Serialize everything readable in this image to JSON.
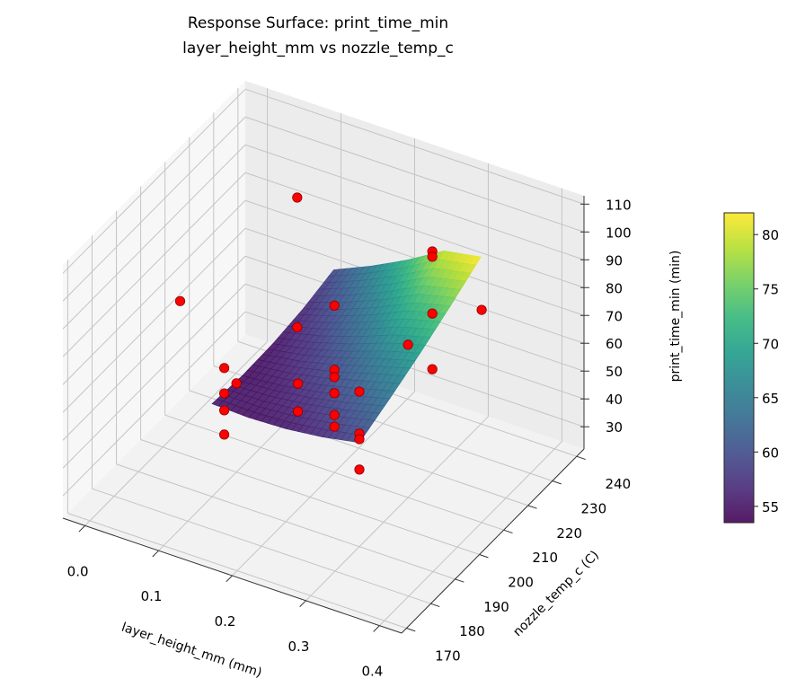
{
  "chart_data": {
    "type": "surface3d+scatter3d",
    "title": "Response Surface: print_time_min",
    "subtitle": "layer_height_mm vs nozzle_temp_c",
    "xlabel": "layer_height_mm (mm)",
    "ylabel": "nozzle_temp_c (C)",
    "zlabel": "print_time_min (min)",
    "xlim": [
      -0.03,
      0.43
    ],
    "ylim": [
      168,
      243
    ],
    "zlim": [
      22,
      113
    ],
    "xticks": [
      "0.0",
      "0.1",
      "0.2",
      "0.3",
      "0.4"
    ],
    "yticks": [
      "170",
      "180",
      "190",
      "200",
      "210",
      "220",
      "230",
      "240"
    ],
    "zticks": [
      "30",
      "40",
      "50",
      "60",
      "70",
      "80",
      "90",
      "100",
      "110"
    ],
    "grid": true,
    "colormap": "viridis",
    "colorbar": {
      "range": [
        53.5,
        82
      ],
      "ticks": [
        "55",
        "60",
        "65",
        "70",
        "75",
        "80"
      ],
      "placement": "right"
    },
    "surface": {
      "x": [
        0.1,
        0.15,
        0.2,
        0.25,
        0.3
      ],
      "y": [
        190,
        202.5,
        215,
        227.5,
        240
      ],
      "z": [
        [
          55.4,
          54.5,
          54.9,
          56.5,
          59.4
        ],
        [
          54.9,
          55.6,
          57.5,
          60.7,
          65.2
        ],
        [
          55.4,
          57.7,
          61.2,
          65.9,
          71.9
        ],
        [
          56.9,
          60.7,
          65.8,
          72.1,
          79.7
        ],
        [
          59.4,
          64.2,
          69.5,
          75.5,
          82.0
        ]
      ]
    },
    "points_color": "#ff0000",
    "points": [
      [
        0.1,
        225,
        98.6
      ],
      [
        0.05,
        192,
        86
      ],
      [
        0.2,
        210,
        82
      ],
      [
        0.1,
        225,
        52
      ],
      [
        0.3,
        220,
        101.6
      ],
      [
        0.3,
        220,
        99.7
      ],
      [
        0.4,
        210,
        98.4
      ],
      [
        0.3,
        220,
        79.3
      ],
      [
        0.1,
        195,
        63.8
      ],
      [
        0.1,
        200,
        53.9
      ],
      [
        0.1,
        195,
        54.7
      ],
      [
        0.1,
        195,
        48.6
      ],
      [
        0.1,
        195,
        39.9
      ],
      [
        0.2,
        195,
        67.2
      ],
      [
        0.2,
        195,
        57.2
      ],
      [
        0.2,
        210,
        58.9
      ],
      [
        0.2,
        210,
        56.3
      ],
      [
        0.2,
        210,
        50.5
      ],
      [
        0.2,
        210,
        42.7
      ],
      [
        0.2,
        210,
        38.5
      ],
      [
        0.3,
        190,
        49.7
      ],
      [
        0.3,
        190,
        77.7
      ],
      [
        0.3,
        190,
        62.6
      ],
      [
        0.3,
        190,
        60.6
      ],
      [
        0.3,
        210,
        76.9
      ],
      [
        0.3,
        220,
        59.3
      ]
    ]
  }
}
